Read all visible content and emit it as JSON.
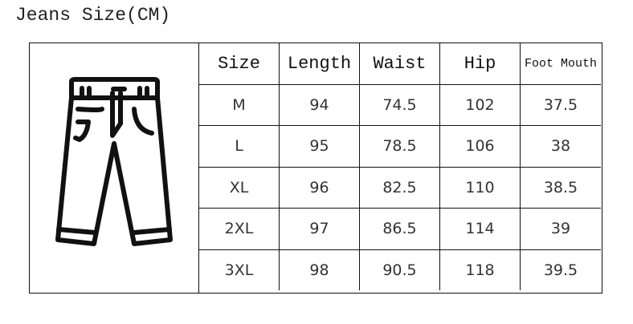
{
  "title": "Jeans Size(CM)",
  "illustration": {
    "icon": "jeans-icon"
  },
  "table": {
    "headers": [
      "Size",
      "Length",
      "Waist",
      "Hip",
      "Foot Mouth"
    ],
    "rows": [
      [
        "M",
        "94",
        "74.5",
        "102",
        "37.5"
      ],
      [
        "L",
        "95",
        "78.5",
        "106",
        "38"
      ],
      [
        "XL",
        "96",
        "82.5",
        "110",
        "38.5"
      ],
      [
        "2XL",
        "97",
        "86.5",
        "114",
        "39"
      ],
      [
        "3XL",
        "98",
        "90.5",
        "118",
        "39.5"
      ]
    ]
  }
}
